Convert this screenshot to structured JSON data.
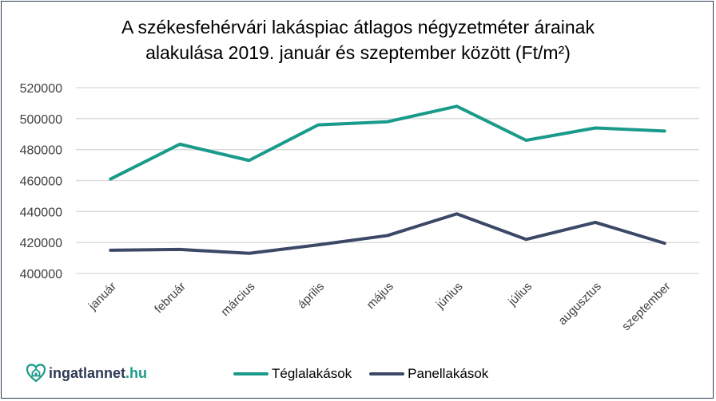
{
  "chart_data": {
    "type": "line",
    "title": "A székesfehérvári  lakáspiac átlagos négyzetméter árainak alakulása 2019. január és szeptember között (Ft/m²)",
    "title_lines": [
      "A székesfehérvári  lakáspiac átlagos négyzetméter árainak",
      "alakulása 2019. január és szeptember között (Ft/m²)"
    ],
    "xlabel": "",
    "ylabel": "",
    "categories": [
      "január",
      "február",
      "március",
      "április",
      "május",
      "június",
      "július",
      "augusztus",
      "szeptember"
    ],
    "ylim": [
      400000,
      520000
    ],
    "yticks": [
      "400000",
      "420000",
      "440000",
      "460000",
      "480000",
      "500000",
      "520000"
    ],
    "grid": true,
    "legend_position": "bottom",
    "series": [
      {
        "name": "Téglalakások",
        "color": "#1a9a8a",
        "values": [
          461000,
          483500,
          473000,
          496000,
          498000,
          508000,
          486000,
          494000,
          492000
        ]
      },
      {
        "name": "Panellakások",
        "color": "#3b4866",
        "values": [
          415000,
          415500,
          413000,
          418500,
          424500,
          438500,
          422000,
          433000,
          419500
        ]
      }
    ]
  },
  "logo": {
    "name": "ingatlannet",
    "tld": ".hu"
  }
}
